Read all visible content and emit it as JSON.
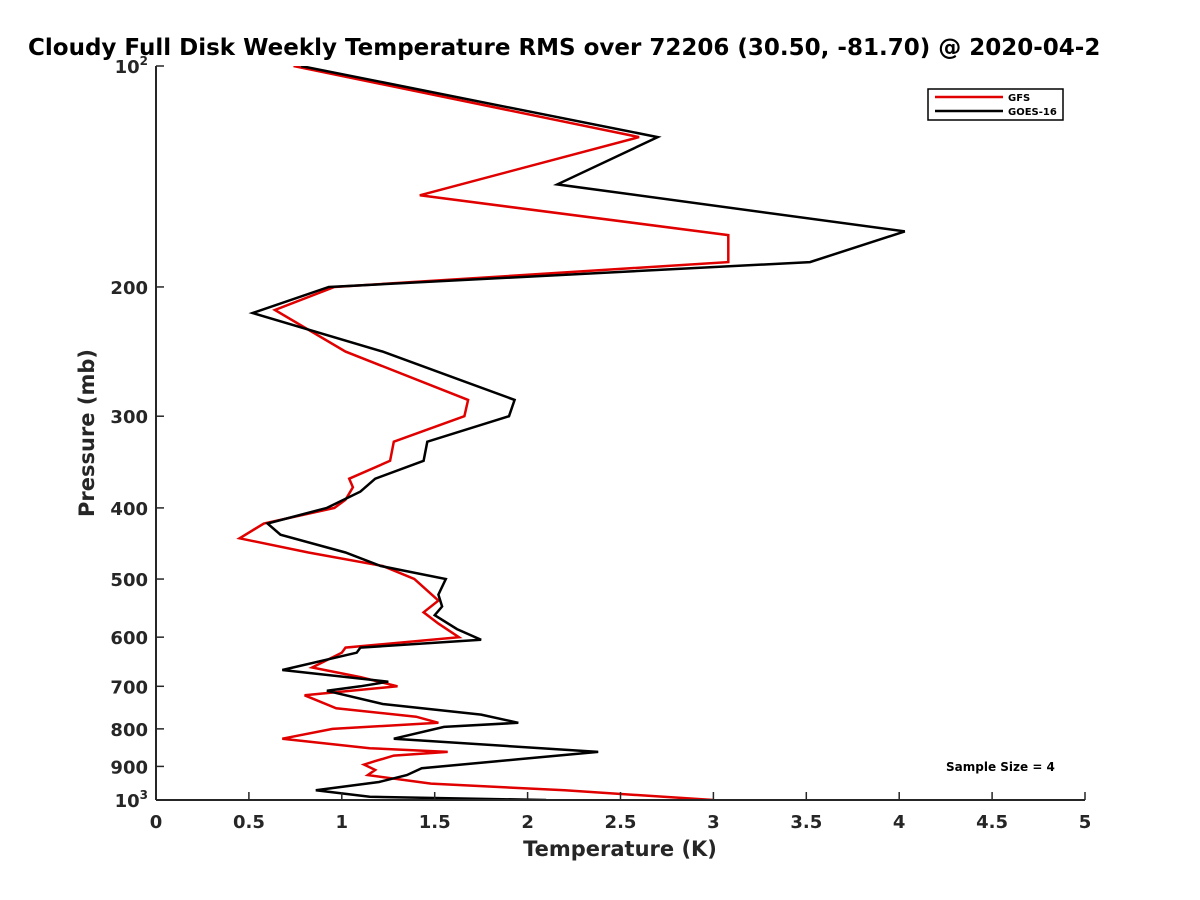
{
  "chart_data": {
    "type": "line",
    "title": "Cloudy Full Disk Weekly Temperature RMS over 72206 (30.50, -81.70) @ 2020-04-2",
    "xlabel": "Temperature (K)",
    "ylabel": "Pressure (mb)",
    "xlim": [
      0,
      5
    ],
    "ylim": [
      100,
      1000
    ],
    "yscale": "log",
    "y_reversed": true,
    "x_ticks": [
      0,
      0.5,
      1,
      1.5,
      2,
      2.5,
      3,
      3.5,
      4,
      4.5,
      5
    ],
    "x_tick_labels": [
      "0",
      "0.5",
      "1",
      "1.5",
      "2",
      "2.5",
      "3",
      "3.5",
      "4",
      "4.5",
      "5"
    ],
    "y_ticks": [
      100,
      200,
      300,
      400,
      500,
      600,
      700,
      800,
      900,
      1000
    ],
    "y_tick_labels": [
      {
        "base": "10",
        "sup": "2"
      },
      {
        "base": "200",
        "sup": ""
      },
      {
        "base": "300",
        "sup": ""
      },
      {
        "base": "400",
        "sup": ""
      },
      {
        "base": "500",
        "sup": ""
      },
      {
        "base": "600",
        "sup": ""
      },
      {
        "base": "700",
        "sup": ""
      },
      {
        "base": "800",
        "sup": ""
      },
      {
        "base": "900",
        "sup": ""
      },
      {
        "base": "10",
        "sup": "3"
      }
    ],
    "grid": false,
    "legend_position": "top-right",
    "annotation": "Sample Size = 4",
    "series": [
      {
        "name": "GFS",
        "color": "#e00000",
        "points": [
          [
            0.74,
            100
          ],
          [
            2.6,
            125
          ],
          [
            1.42,
            150
          ],
          [
            3.08,
            170
          ],
          [
            3.08,
            185
          ],
          [
            0.96,
            200
          ],
          [
            0.64,
            215
          ],
          [
            1.02,
            245
          ],
          [
            1.68,
            285
          ],
          [
            1.66,
            300
          ],
          [
            1.28,
            325
          ],
          [
            1.26,
            345
          ],
          [
            1.04,
            365
          ],
          [
            1.06,
            375
          ],
          [
            1.02,
            390
          ],
          [
            0.96,
            400
          ],
          [
            0.58,
            420
          ],
          [
            0.45,
            440
          ],
          [
            0.82,
            460
          ],
          [
            1.22,
            480
          ],
          [
            1.39,
            500
          ],
          [
            1.52,
            535
          ],
          [
            1.44,
            555
          ],
          [
            1.52,
            575
          ],
          [
            1.63,
            600
          ],
          [
            1.02,
            620
          ],
          [
            1.0,
            630
          ],
          [
            0.84,
            660
          ],
          [
            1.1,
            680
          ],
          [
            1.3,
            700
          ],
          [
            0.8,
            720
          ],
          [
            0.97,
            750
          ],
          [
            1.4,
            770
          ],
          [
            1.52,
            785
          ],
          [
            0.95,
            800
          ],
          [
            0.68,
            825
          ],
          [
            1.15,
            850
          ],
          [
            1.57,
            860
          ],
          [
            1.28,
            870
          ],
          [
            1.18,
            885
          ],
          [
            1.12,
            895
          ],
          [
            1.18,
            910
          ],
          [
            1.14,
            925
          ],
          [
            1.48,
            950
          ],
          [
            2.2,
            970
          ],
          [
            3.0,
            1000
          ]
        ]
      },
      {
        "name": "GOES-16",
        "color": "#000000",
        "points": [
          [
            0.78,
            100
          ],
          [
            2.7,
            125
          ],
          [
            2.16,
            145
          ],
          [
            4.03,
            168
          ],
          [
            3.52,
            185
          ],
          [
            0.93,
            200
          ],
          [
            0.52,
            217
          ],
          [
            1.22,
            245
          ],
          [
            1.93,
            285
          ],
          [
            1.9,
            300
          ],
          [
            1.46,
            325
          ],
          [
            1.44,
            345
          ],
          [
            1.18,
            365
          ],
          [
            1.1,
            380
          ],
          [
            0.92,
            400
          ],
          [
            0.6,
            420
          ],
          [
            0.67,
            435
          ],
          [
            1.02,
            460
          ],
          [
            1.21,
            480
          ],
          [
            1.56,
            500
          ],
          [
            1.52,
            525
          ],
          [
            1.54,
            545
          ],
          [
            1.5,
            560
          ],
          [
            1.62,
            585
          ],
          [
            1.75,
            605
          ],
          [
            1.1,
            620
          ],
          [
            1.08,
            630
          ],
          [
            0.68,
            665
          ],
          [
            1.25,
            690
          ],
          [
            1.1,
            700
          ],
          [
            0.92,
            710
          ],
          [
            1.22,
            740
          ],
          [
            1.75,
            765
          ],
          [
            1.95,
            785
          ],
          [
            1.55,
            795
          ],
          [
            1.28,
            825
          ],
          [
            2.38,
            860
          ],
          [
            1.95,
            880
          ],
          [
            1.43,
            905
          ],
          [
            1.35,
            925
          ],
          [
            1.2,
            945
          ],
          [
            0.86,
            970
          ],
          [
            1.15,
            990
          ],
          [
            2.1,
            1000
          ]
        ]
      }
    ]
  }
}
